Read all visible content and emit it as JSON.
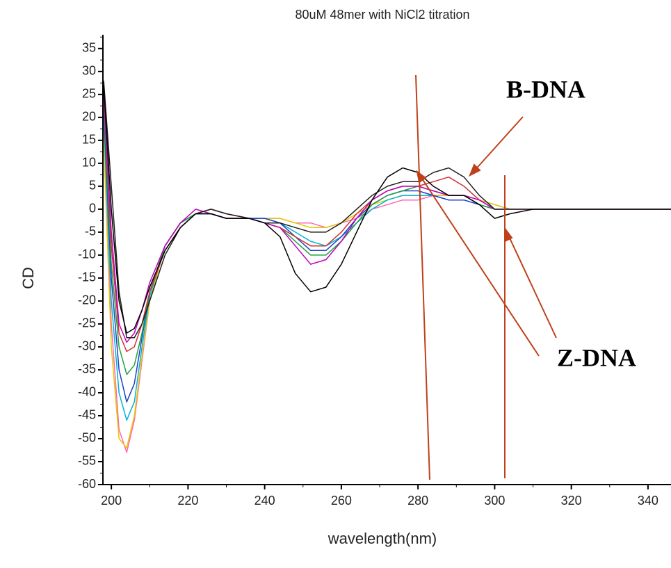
{
  "chart_data": {
    "type": "line",
    "title": "80uM 48mer with NiCl2 titration",
    "xlabel": "wavelength(nm)",
    "ylabel": "CD",
    "annotations": [
      "B-DNA",
      "Z-DNA"
    ],
    "xlim": [
      197.8,
      346
    ],
    "ylim": [
      -60,
      38
    ],
    "xticks": [
      200,
      220,
      240,
      260,
      280,
      300,
      320,
      340
    ],
    "yticks": [
      35,
      30,
      25,
      20,
      15,
      10,
      5,
      0,
      -5,
      -10,
      -15,
      -20,
      -25,
      -30,
      -35,
      -40,
      -45,
      -50,
      -55,
      -60
    ],
    "grid": false,
    "x": [
      198,
      200,
      202,
      204,
      206,
      208,
      210,
      214,
      218,
      222,
      226,
      230,
      236,
      240,
      244,
      248,
      252,
      256,
      260,
      264,
      268,
      272,
      276,
      280,
      284,
      288,
      292,
      296,
      300,
      304,
      310,
      320,
      330,
      340,
      346
    ],
    "series": [
      {
        "color": "#ff66b3",
        "values": [
          18,
          -25,
          -48,
          -53,
          -46,
          -33,
          -20,
          -8,
          -3,
          -1,
          -1,
          -2,
          -2,
          -2,
          -2,
          -3,
          -3,
          -4,
          -3,
          -2,
          0,
          1,
          2,
          2,
          3,
          3,
          3,
          2,
          1,
          0,
          0,
          0,
          0,
          0,
          0
        ]
      },
      {
        "color": "#e6c800",
        "values": [
          15,
          -30,
          -50,
          -52,
          -45,
          -32,
          -20,
          -8,
          -3,
          -1,
          -1,
          -2,
          -2,
          -2,
          -2,
          -3,
          -4,
          -4,
          -3,
          -1,
          1,
          2,
          3,
          3,
          3,
          3,
          3,
          2,
          1,
          0,
          0,
          0,
          0,
          0,
          0
        ]
      },
      {
        "color": "#00b4d8",
        "values": [
          20,
          -20,
          -40,
          -46,
          -42,
          -30,
          -19,
          -8,
          -3,
          -1,
          -1,
          -2,
          -2,
          -2,
          -3,
          -5,
          -7,
          -8,
          -6,
          -3,
          0,
          2,
          3,
          3,
          3,
          2,
          2,
          1,
          0,
          0,
          0,
          0,
          0,
          0,
          0
        ]
      },
      {
        "color": "#2040c0",
        "values": [
          22,
          -15,
          -35,
          -42,
          -38,
          -28,
          -18,
          -8,
          -3,
          -1,
          -1,
          -2,
          -2,
          -2,
          -3,
          -6,
          -9,
          -9,
          -6,
          -2,
          1,
          3,
          4,
          4,
          3,
          2,
          2,
          1,
          0,
          0,
          0,
          0,
          0,
          0,
          0
        ]
      },
      {
        "color": "#20a040",
        "values": [
          24,
          -12,
          -30,
          -36,
          -34,
          -27,
          -18,
          -8,
          -3,
          -1,
          -1,
          -2,
          -2,
          -3,
          -4,
          -7,
          -10,
          -10,
          -7,
          -3,
          1,
          3,
          4,
          5,
          4,
          3,
          3,
          1,
          0,
          0,
          0,
          0,
          0,
          0,
          0
        ]
      },
      {
        "color": "#d03030",
        "values": [
          25,
          -8,
          -27,
          -31,
          -30,
          -25,
          -18,
          -9,
          -4,
          -1,
          0,
          -1,
          -2,
          -3,
          -4,
          -6,
          -8,
          -8,
          -5,
          -1,
          2,
          4,
          5,
          5,
          6,
          7,
          5,
          2,
          0,
          0,
          0,
          0,
          0,
          0,
          0
        ]
      },
      {
        "color": "#c000c0",
        "values": [
          26,
          -5,
          -25,
          -29,
          -27,
          -22,
          -16,
          -8,
          -3,
          0,
          -1,
          -2,
          -2,
          -3,
          -4,
          -8,
          -12,
          -11,
          -7,
          -2,
          2,
          4,
          5,
          5,
          4,
          3,
          3,
          2,
          0,
          0,
          0,
          0,
          0,
          0,
          0
        ]
      },
      {
        "color": "#202020",
        "values": [
          28,
          5,
          -18,
          -28,
          -28,
          -25,
          -20,
          -10,
          -4,
          -1,
          0,
          -1,
          -2,
          -3,
          -3,
          -4,
          -5,
          -5,
          -3,
          0,
          3,
          5,
          6,
          6,
          8,
          9,
          7,
          3,
          0,
          0,
          0,
          0,
          0,
          0,
          0
        ]
      },
      {
        "color": "#000000",
        "values": [
          27,
          0,
          -20,
          -27,
          -26,
          -22,
          -17,
          -9,
          -4,
          -1,
          -1,
          -2,
          -2,
          -3,
          -6,
          -14,
          -18,
          -17,
          -12,
          -5,
          2,
          7,
          9,
          8,
          5,
          3,
          3,
          1,
          -2,
          -1,
          0,
          0,
          0,
          0,
          0
        ]
      }
    ]
  }
}
